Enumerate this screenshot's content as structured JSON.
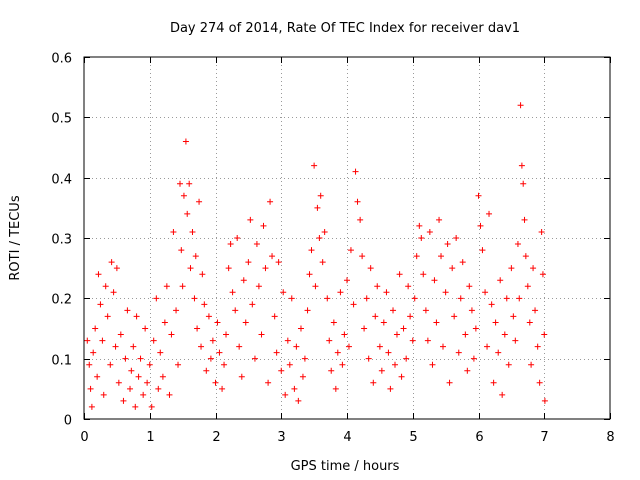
{
  "chart_data": {
    "type": "scatter",
    "title": "Day 274 of 2014, Rate Of TEC Index for receiver dav1",
    "xlabel": "GPS time / hours",
    "ylabel": "ROTI / TECUs",
    "xlim": [
      0,
      8
    ],
    "ylim": [
      0,
      0.6
    ],
    "grid": true,
    "marker": "plus",
    "color": "#ff0000",
    "x_ticks": [
      0,
      1,
      2,
      3,
      4,
      5,
      6,
      7,
      8
    ],
    "x_tick_labels": [
      "0",
      "1",
      "2",
      "3",
      "4",
      "5",
      "6",
      "7",
      "8"
    ],
    "y_ticks": [
      0,
      0.1,
      0.2,
      0.3,
      0.4,
      0.5,
      0.6
    ],
    "y_tick_labels": [
      "0",
      "0.1",
      "0.2",
      "0.3",
      "0.4",
      "0.5",
      "0.6"
    ],
    "series": [
      {
        "name": "dav1",
        "points": [
          [
            0.05,
            0.13
          ],
          [
            0.08,
            0.09
          ],
          [
            0.1,
            0.05
          ],
          [
            0.12,
            0.02
          ],
          [
            0.14,
            0.11
          ],
          [
            0.17,
            0.15
          ],
          [
            0.2,
            0.07
          ],
          [
            0.22,
            0.24
          ],
          [
            0.25,
            0.19
          ],
          [
            0.28,
            0.13
          ],
          [
            0.3,
            0.04
          ],
          [
            0.33,
            0.22
          ],
          [
            0.36,
            0.17
          ],
          [
            0.4,
            0.09
          ],
          [
            0.42,
            0.26
          ],
          [
            0.45,
            0.21
          ],
          [
            0.48,
            0.12
          ],
          [
            0.5,
            0.25
          ],
          [
            0.53,
            0.06
          ],
          [
            0.56,
            0.14
          ],
          [
            0.6,
            0.03
          ],
          [
            0.63,
            0.1
          ],
          [
            0.66,
            0.18
          ],
          [
            0.7,
            0.05
          ],
          [
            0.72,
            0.08
          ],
          [
            0.75,
            0.12
          ],
          [
            0.78,
            0.02
          ],
          [
            0.8,
            0.17
          ],
          [
            0.83,
            0.07
          ],
          [
            0.86,
            0.1
          ],
          [
            0.9,
            0.04
          ],
          [
            0.93,
            0.15
          ],
          [
            0.96,
            0.06
          ],
          [
            1.0,
            0.09
          ],
          [
            1.03,
            0.02
          ],
          [
            1.06,
            0.13
          ],
          [
            1.1,
            0.2
          ],
          [
            1.13,
            0.05
          ],
          [
            1.16,
            0.11
          ],
          [
            1.2,
            0.07
          ],
          [
            1.23,
            0.16
          ],
          [
            1.26,
            0.22
          ],
          [
            1.3,
            0.04
          ],
          [
            1.33,
            0.14
          ],
          [
            1.36,
            0.31
          ],
          [
            1.4,
            0.18
          ],
          [
            1.43,
            0.09
          ],
          [
            1.46,
            0.39
          ],
          [
            1.48,
            0.28
          ],
          [
            1.5,
            0.22
          ],
          [
            1.52,
            0.37
          ],
          [
            1.55,
            0.46
          ],
          [
            1.57,
            0.34
          ],
          [
            1.6,
            0.39
          ],
          [
            1.62,
            0.25
          ],
          [
            1.65,
            0.31
          ],
          [
            1.68,
            0.2
          ],
          [
            1.7,
            0.27
          ],
          [
            1.72,
            0.15
          ],
          [
            1.75,
            0.36
          ],
          [
            1.78,
            0.12
          ],
          [
            1.8,
            0.24
          ],
          [
            1.83,
            0.19
          ],
          [
            1.86,
            0.08
          ],
          [
            1.9,
            0.17
          ],
          [
            1.93,
            0.1
          ],
          [
            1.96,
            0.13
          ],
          [
            2.0,
            0.06
          ],
          [
            2.03,
            0.16
          ],
          [
            2.06,
            0.11
          ],
          [
            2.1,
            0.05
          ],
          [
            2.13,
            0.09
          ],
          [
            2.16,
            0.14
          ],
          [
            2.2,
            0.25
          ],
          [
            2.23,
            0.29
          ],
          [
            2.26,
            0.21
          ],
          [
            2.3,
            0.18
          ],
          [
            2.33,
            0.3
          ],
          [
            2.36,
            0.12
          ],
          [
            2.4,
            0.07
          ],
          [
            2.43,
            0.23
          ],
          [
            2.46,
            0.16
          ],
          [
            2.5,
            0.26
          ],
          [
            2.53,
            0.33
          ],
          [
            2.56,
            0.19
          ],
          [
            2.6,
            0.1
          ],
          [
            2.63,
            0.29
          ],
          [
            2.66,
            0.22
          ],
          [
            2.7,
            0.14
          ],
          [
            2.73,
            0.32
          ],
          [
            2.76,
            0.25
          ],
          [
            2.8,
            0.06
          ],
          [
            2.83,
            0.36
          ],
          [
            2.86,
            0.27
          ],
          [
            2.9,
            0.17
          ],
          [
            2.93,
            0.11
          ],
          [
            2.96,
            0.26
          ],
          [
            3.0,
            0.08
          ],
          [
            3.03,
            0.21
          ],
          [
            3.06,
            0.04
          ],
          [
            3.1,
            0.13
          ],
          [
            3.13,
            0.09
          ],
          [
            3.16,
            0.2
          ],
          [
            3.2,
            0.05
          ],
          [
            3.23,
            0.12
          ],
          [
            3.26,
            0.03
          ],
          [
            3.3,
            0.15
          ],
          [
            3.33,
            0.07
          ],
          [
            3.36,
            0.1
          ],
          [
            3.4,
            0.18
          ],
          [
            3.43,
            0.24
          ],
          [
            3.46,
            0.28
          ],
          [
            3.5,
            0.42
          ],
          [
            3.52,
            0.22
          ],
          [
            3.55,
            0.35
          ],
          [
            3.58,
            0.3
          ],
          [
            3.6,
            0.37
          ],
          [
            3.63,
            0.26
          ],
          [
            3.66,
            0.31
          ],
          [
            3.7,
            0.2
          ],
          [
            3.73,
            0.13
          ],
          [
            3.76,
            0.08
          ],
          [
            3.8,
            0.16
          ],
          [
            3.83,
            0.05
          ],
          [
            3.86,
            0.11
          ],
          [
            3.9,
            0.21
          ],
          [
            3.93,
            0.09
          ],
          [
            3.96,
            0.14
          ],
          [
            4.0,
            0.23
          ],
          [
            4.03,
            0.12
          ],
          [
            4.06,
            0.28
          ],
          [
            4.1,
            0.19
          ],
          [
            4.13,
            0.41
          ],
          [
            4.16,
            0.36
          ],
          [
            4.2,
            0.33
          ],
          [
            4.23,
            0.27
          ],
          [
            4.26,
            0.15
          ],
          [
            4.3,
            0.2
          ],
          [
            4.33,
            0.1
          ],
          [
            4.36,
            0.25
          ],
          [
            4.4,
            0.06
          ],
          [
            4.43,
            0.17
          ],
          [
            4.46,
            0.22
          ],
          [
            4.5,
            0.12
          ],
          [
            4.53,
            0.08
          ],
          [
            4.56,
            0.16
          ],
          [
            4.6,
            0.21
          ],
          [
            4.63,
            0.11
          ],
          [
            4.66,
            0.05
          ],
          [
            4.7,
            0.18
          ],
          [
            4.73,
            0.09
          ],
          [
            4.76,
            0.14
          ],
          [
            4.8,
            0.24
          ],
          [
            4.83,
            0.07
          ],
          [
            4.86,
            0.15
          ],
          [
            4.9,
            0.1
          ],
          [
            4.93,
            0.22
          ],
          [
            4.96,
            0.17
          ],
          [
            5.0,
            0.13
          ],
          [
            5.03,
            0.2
          ],
          [
            5.06,
            0.27
          ],
          [
            5.1,
            0.32
          ],
          [
            5.13,
            0.3
          ],
          [
            5.16,
            0.24
          ],
          [
            5.2,
            0.18
          ],
          [
            5.23,
            0.13
          ],
          [
            5.26,
            0.31
          ],
          [
            5.3,
            0.09
          ],
          [
            5.33,
            0.23
          ],
          [
            5.36,
            0.16
          ],
          [
            5.4,
            0.33
          ],
          [
            5.43,
            0.27
          ],
          [
            5.46,
            0.12
          ],
          [
            5.5,
            0.21
          ],
          [
            5.53,
            0.29
          ],
          [
            5.56,
            0.06
          ],
          [
            5.6,
            0.25
          ],
          [
            5.63,
            0.17
          ],
          [
            5.66,
            0.3
          ],
          [
            5.7,
            0.11
          ],
          [
            5.73,
            0.2
          ],
          [
            5.76,
            0.26
          ],
          [
            5.8,
            0.14
          ],
          [
            5.83,
            0.08
          ],
          [
            5.86,
            0.22
          ],
          [
            5.9,
            0.18
          ],
          [
            5.93,
            0.1
          ],
          [
            5.96,
            0.15
          ],
          [
            6.0,
            0.37
          ],
          [
            6.03,
            0.32
          ],
          [
            6.06,
            0.28
          ],
          [
            6.1,
            0.21
          ],
          [
            6.13,
            0.12
          ],
          [
            6.16,
            0.34
          ],
          [
            6.2,
            0.19
          ],
          [
            6.23,
            0.06
          ],
          [
            6.26,
            0.16
          ],
          [
            6.3,
            0.11
          ],
          [
            6.33,
            0.23
          ],
          [
            6.36,
            0.04
          ],
          [
            6.4,
            0.14
          ],
          [
            6.43,
            0.2
          ],
          [
            6.46,
            0.09
          ],
          [
            6.5,
            0.25
          ],
          [
            6.53,
            0.17
          ],
          [
            6.56,
            0.13
          ],
          [
            6.6,
            0.29
          ],
          [
            6.62,
            0.2
          ],
          [
            6.64,
            0.52
          ],
          [
            6.66,
            0.42
          ],
          [
            6.68,
            0.39
          ],
          [
            6.7,
            0.33
          ],
          [
            6.72,
            0.27
          ],
          [
            6.75,
            0.22
          ],
          [
            6.78,
            0.16
          ],
          [
            6.8,
            0.09
          ],
          [
            6.83,
            0.25
          ],
          [
            6.86,
            0.18
          ],
          [
            6.9,
            0.12
          ],
          [
            6.93,
            0.06
          ],
          [
            6.96,
            0.31
          ],
          [
            6.98,
            0.24
          ],
          [
            7.0,
            0.14
          ],
          [
            7.01,
            0.03
          ]
        ]
      }
    ]
  }
}
